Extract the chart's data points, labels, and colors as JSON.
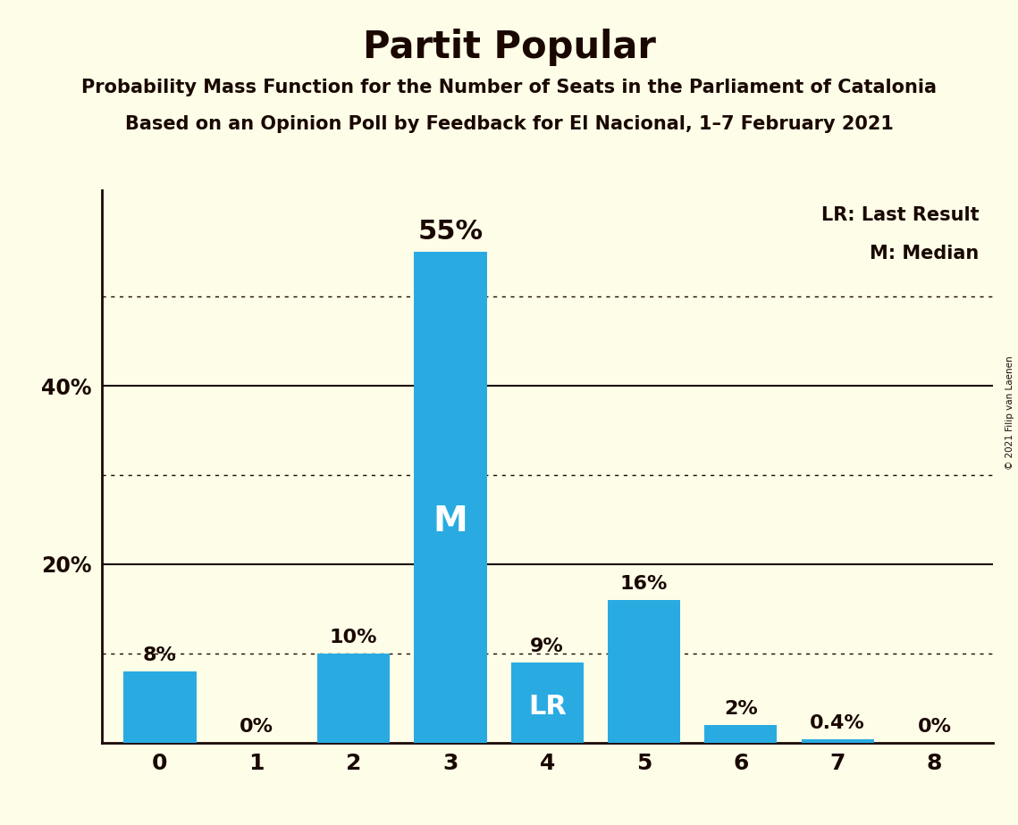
{
  "title": "Partit Popular",
  "subtitle1": "Probability Mass Function for the Number of Seats in the Parliament of Catalonia",
  "subtitle2": "Based on an Opinion Poll by Feedback for El Nacional, 1–7 February 2021",
  "copyright": "© 2021 Filip van Laenen",
  "categories": [
    0,
    1,
    2,
    3,
    4,
    5,
    6,
    7,
    8
  ],
  "values": [
    8,
    0,
    10,
    55,
    9,
    16,
    2,
    0.4,
    0
  ],
  "labels": [
    "8%",
    "0%",
    "10%",
    "55%",
    "9%",
    "16%",
    "2%",
    "0.4%",
    "0%"
  ],
  "bar_color": "#29ABE2",
  "background_color": "#FDFDE8",
  "text_color": "#1a0800",
  "title_fontsize": 30,
  "subtitle_fontsize": 15,
  "label_fontsize": 16,
  "median_bar": 3,
  "lr_bar": 4,
  "median_label": "M",
  "lr_label": "LR",
  "legend_lr": "LR: Last Result",
  "legend_m": "M: Median",
  "ytick_positions": [
    0,
    20,
    40
  ],
  "ytick_labels": [
    "",
    "20%",
    "40%"
  ],
  "dotted_lines": [
    10,
    30,
    50
  ],
  "solid_lines": [
    20,
    40
  ],
  "ylim": [
    0,
    62
  ],
  "bar_width": 0.75
}
